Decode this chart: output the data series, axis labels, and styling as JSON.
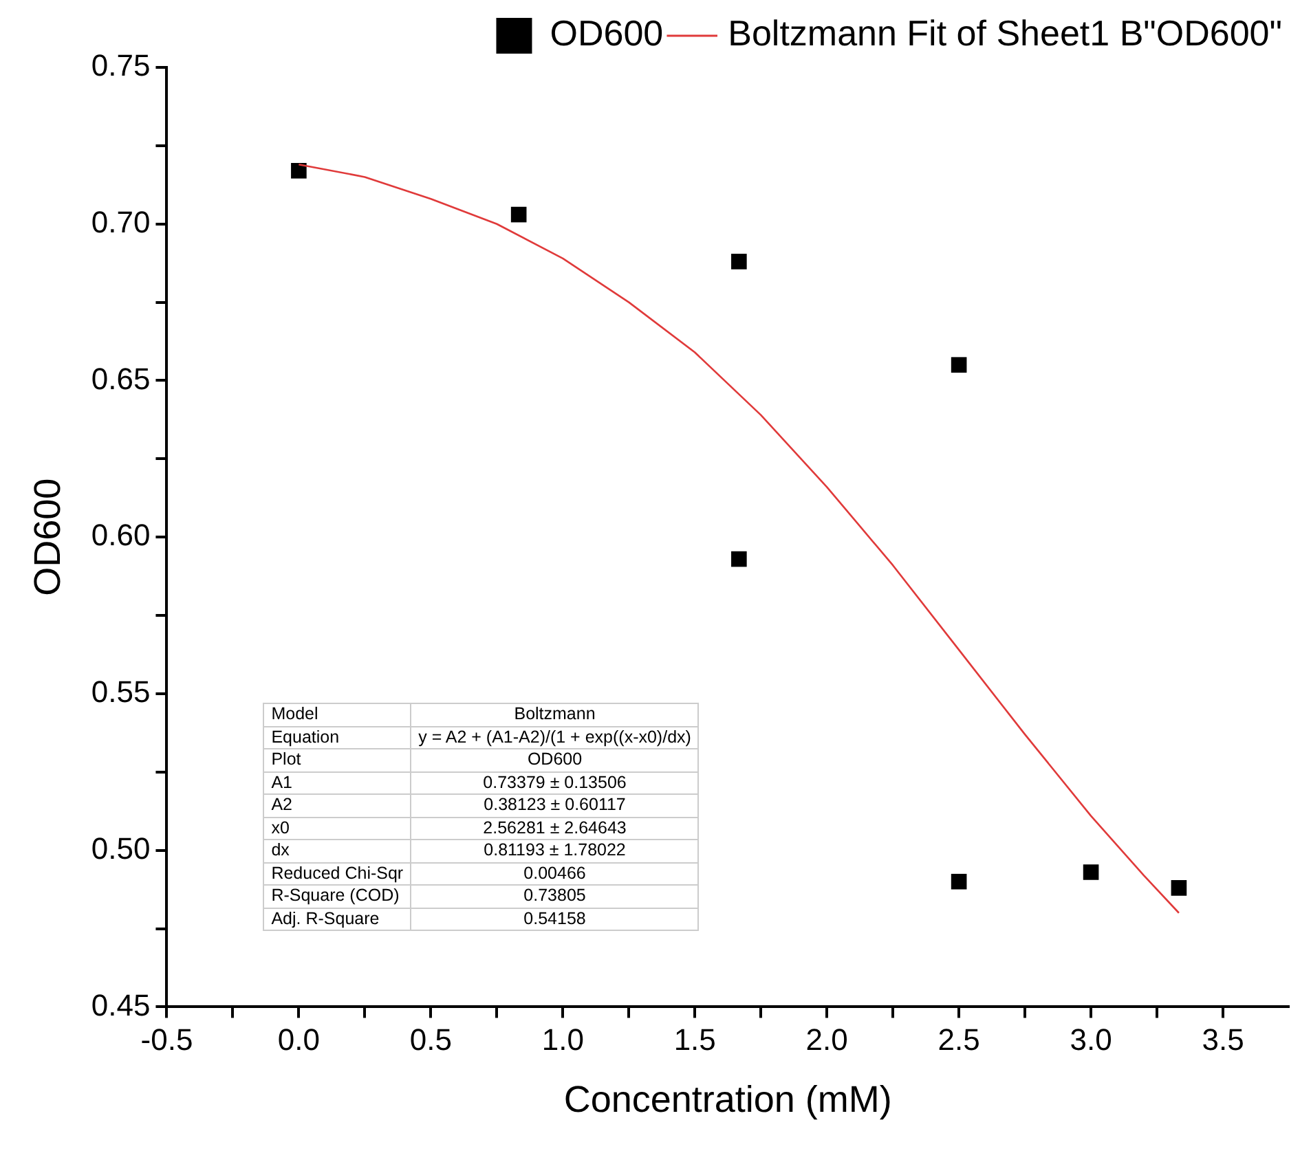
{
  "chart_data": {
    "type": "scatter",
    "xlabel": "Concentration (mM)",
    "ylabel": "OD600",
    "xlim": [
      -0.5,
      3.75
    ],
    "xticks": [
      -0.5,
      {
        "value": -0.25,
        "label": null
      },
      {
        "value": 0,
        "label": "0.0"
      },
      {
        "value": 0.25,
        "label": null
      },
      0.5,
      {
        "value": 0.75,
        "label": null
      },
      {
        "value": 1,
        "label": "1.0"
      },
      {
        "value": 1.25,
        "label": null
      },
      1.5,
      {
        "value": 1.75,
        "label": null
      },
      {
        "value": 2,
        "label": "2.0"
      },
      {
        "value": 2.25,
        "label": null
      },
      2.5,
      {
        "value": 2.75,
        "label": null
      },
      {
        "value": 3,
        "label": "3.0"
      },
      {
        "value": 3.25,
        "label": null
      },
      3.5
    ],
    "ylim": [
      0.45,
      0.75
    ],
    "yticks": [
      0.45,
      {
        "value": 0.475,
        "label": null
      },
      {
        "value": 0.5,
        "label": "0.50"
      },
      {
        "value": 0.525,
        "label": null
      },
      0.55,
      {
        "value": 0.575,
        "label": null
      },
      {
        "value": 0.6,
        "label": "0.60"
      },
      {
        "value": 0.625,
        "label": null
      },
      0.65,
      {
        "value": 0.675,
        "label": null
      },
      {
        "value": 0.7,
        "label": "0.70"
      },
      {
        "value": 0.725,
        "label": null
      },
      0.75
    ],
    "legend": "top right",
    "series": [
      {
        "name": "OD600",
        "type": "scatter",
        "color": "#000000",
        "marker": "square",
        "x": [
          0,
          0.833,
          1.667,
          1.667,
          2.5,
          2.5,
          3.0,
          3.333
        ],
        "values": [
          0.717,
          0.703,
          0.688,
          0.593,
          0.655,
          0.49,
          0.493,
          0.488
        ]
      },
      {
        "name": "Boltzmann Fit of Sheet1 B\"OD600\"",
        "type": "line",
        "color": "#e03a3a",
        "marker": "none",
        "line_style": "solid",
        "x": [
          0,
          0.25,
          0.5,
          0.75,
          1.0,
          1.25,
          1.5,
          1.75,
          2.0,
          2.25,
          2.5,
          2.75,
          3.0,
          3.2,
          3.333
        ],
        "values": [
          0.719,
          0.715,
          0.708,
          0.7,
          0.689,
          0.675,
          0.659,
          0.639,
          0.616,
          0.591,
          0.564,
          0.537,
          0.511,
          0.492,
          0.48
        ]
      }
    ],
    "annotations": [
      "Model\tBoltzmann",
      "Equation\ty = A2 + (A1-A2)/(1 + exp((x-x0)/dx)",
      "Plot\tOD600",
      "A1\t0.73379 ± 0.13506",
      "A2\t0.38123 ± 0.60117",
      "x0\t2.56281 ± 2.64643",
      "dx\t0.81193 ± 1.78022",
      "Reduced Chi-Sqr\t0.00466",
      "R-Square (COD)\t0.73805",
      "Adj. R-Square\t0.54158"
    ]
  }
}
